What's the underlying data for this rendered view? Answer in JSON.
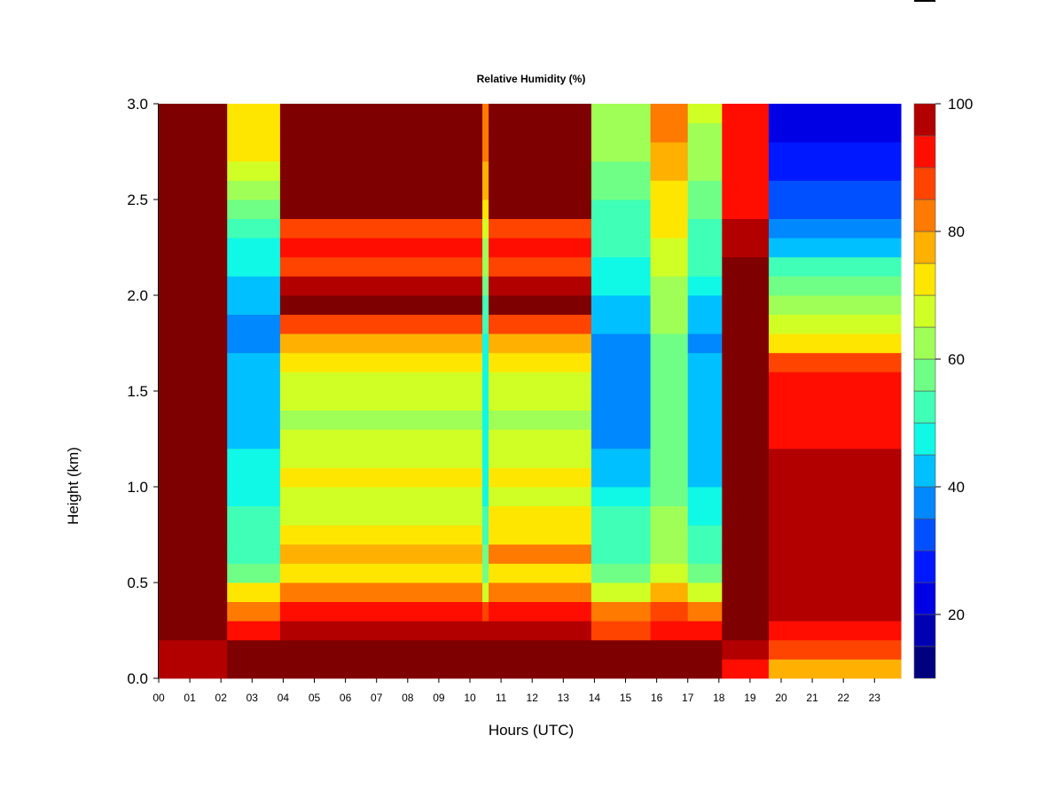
{
  "chart_data": {
    "type": "heatmap",
    "title": "Relative Humidity (%)",
    "xlabel": "Hours (UTC)",
    "ylabel": "Height (km)",
    "xlim": [
      0,
      23.85
    ],
    "ylim": [
      0.0,
      3.0
    ],
    "x_ticks": [
      "00",
      "01",
      "02",
      "03",
      "04",
      "05",
      "06",
      "07",
      "08",
      "09",
      "10",
      "11",
      "12",
      "13",
      "14",
      "15",
      "16",
      "17",
      "18",
      "19",
      "20",
      "21",
      "22",
      "23"
    ],
    "y_ticks": [
      "0.0",
      "0.5",
      "1.0",
      "1.5",
      "2.0",
      "2.5",
      "3.0"
    ],
    "heights_km": [
      0.05,
      0.15,
      0.25,
      0.35,
      0.45,
      0.55,
      0.65,
      0.75,
      0.85,
      0.95,
      1.05,
      1.15,
      1.25,
      1.35,
      1.45,
      1.55,
      1.65,
      1.75,
      1.85,
      1.95,
      2.05,
      2.15,
      2.25,
      2.35,
      2.45,
      2.55,
      2.65,
      2.75,
      2.85,
      2.95
    ],
    "periods": [
      {
        "start": 0.0,
        "end": 2.2,
        "profile": [
          96,
          98,
          100,
          100,
          100,
          100,
          100,
          100,
          100,
          100,
          100,
          100,
          100,
          100,
          100,
          100,
          100,
          100,
          100,
          100,
          100,
          100,
          100,
          100,
          100,
          100,
          100,
          100,
          100,
          100
        ]
      },
      {
        "start": 2.2,
        "end": 3.9,
        "profile": [
          100,
          100,
          90,
          84,
          70,
          58,
          52,
          50,
          50,
          48,
          45,
          45,
          44,
          42,
          42,
          42,
          40,
          38,
          38,
          42,
          44,
          46,
          48,
          52,
          58,
          62,
          66,
          70,
          72,
          74
        ]
      },
      {
        "start": 3.9,
        "end": 10.4,
        "profile": [
          100,
          100,
          95,
          90,
          82,
          72,
          78,
          72,
          68,
          65,
          70,
          68,
          66,
          64,
          66,
          68,
          72,
          76,
          86,
          100,
          96,
          86,
          90,
          86,
          100,
          100,
          100,
          100,
          100,
          100
        ]
      },
      {
        "start": 10.4,
        "end": 10.6,
        "profile": [
          100,
          100,
          95,
          85,
          65,
          58,
          55,
          52,
          50,
          48,
          48,
          46,
          46,
          46,
          46,
          46,
          48,
          48,
          50,
          52,
          55,
          60,
          64,
          68,
          72,
          76,
          78,
          80,
          80,
          82
        ]
      },
      {
        "start": 10.6,
        "end": 13.9,
        "profile": [
          100,
          100,
          95,
          90,
          82,
          72,
          80,
          74,
          70,
          66,
          72,
          68,
          66,
          64,
          66,
          68,
          72,
          76,
          86,
          100,
          96,
          86,
          90,
          86,
          100,
          100,
          100,
          100,
          100,
          100
        ]
      },
      {
        "start": 13.9,
        "end": 15.8,
        "profile": [
          100,
          100,
          88,
          80,
          68,
          58,
          54,
          52,
          50,
          46,
          44,
          42,
          38,
          36,
          35,
          35,
          35,
          36,
          40,
          44,
          46,
          48,
          50,
          52,
          54,
          56,
          58,
          60,
          62,
          64
        ]
      },
      {
        "start": 15.8,
        "end": 17.0,
        "profile": [
          100,
          100,
          92,
          86,
          76,
          68,
          64,
          62,
          60,
          58,
          58,
          58,
          56,
          56,
          56,
          56,
          58,
          58,
          60,
          62,
          64,
          66,
          68,
          70,
          72,
          74,
          76,
          78,
          80,
          82
        ]
      },
      {
        "start": 17.0,
        "end": 18.1,
        "profile": [
          100,
          100,
          92,
          84,
          68,
          56,
          52,
          50,
          48,
          46,
          44,
          42,
          40,
          40,
          40,
          40,
          40,
          38,
          40,
          44,
          48,
          50,
          52,
          54,
          56,
          58,
          60,
          62,
          64,
          66
        ]
      },
      {
        "start": 18.1,
        "end": 19.6,
        "profile": [
          94,
          98,
          100,
          100,
          100,
          100,
          100,
          100,
          100,
          100,
          100,
          100,
          100,
          100,
          100,
          100,
          100,
          100,
          100,
          100,
          100,
          100,
          98,
          96,
          94,
          92,
          92,
          90,
          90,
          90
        ]
      },
      {
        "start": 19.6,
        "end": 23.85,
        "profile": [
          78,
          88,
          94,
          96,
          96,
          96,
          96,
          96,
          96,
          96,
          96,
          96,
          94,
          94,
          92,
          90,
          86,
          70,
          66,
          62,
          56,
          50,
          44,
          38,
          34,
          30,
          28,
          26,
          24,
          22
        ]
      }
    ],
    "colorbar": {
      "min": 10,
      "max": 100,
      "step": 5,
      "labels": [
        "20",
        "40",
        "60",
        "80",
        "100"
      ],
      "colors": [
        "#00007F",
        "#0000B2",
        "#0000E5",
        "#0018FF",
        "#0050FF",
        "#0088FF",
        "#00C0FF",
        "#10F8E6",
        "#40FFB6",
        "#70FF86",
        "#A0FF56",
        "#D0FF26",
        "#FFE600",
        "#FFB000",
        "#FF7A00",
        "#FF4400",
        "#FF0E00",
        "#B20000",
        "#7F0000"
      ]
    }
  }
}
